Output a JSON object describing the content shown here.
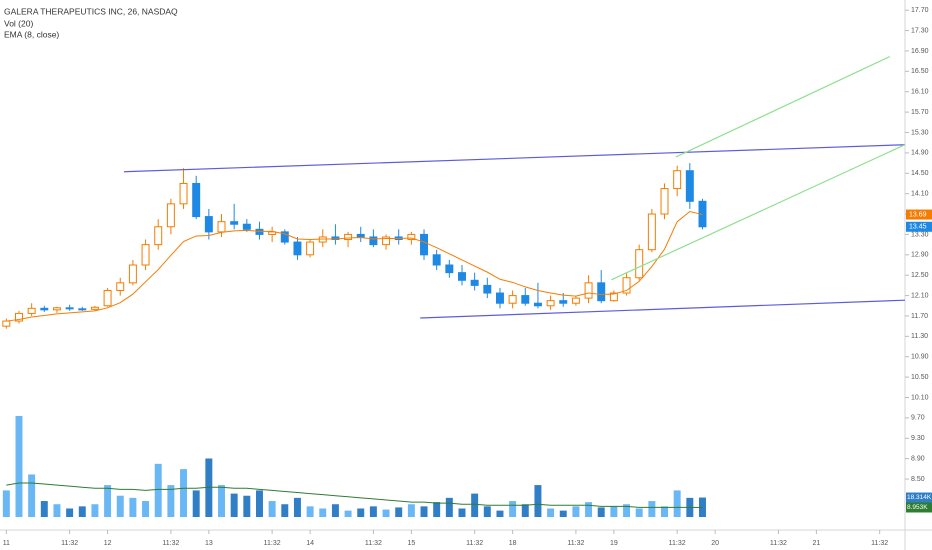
{
  "chart_data": {
    "type": "candlestick",
    "title": "GALERA THERAPEUTICS INC, 26, NASDAQ",
    "up_color": "#f57c00",
    "down_color": "#1e88e5",
    "open": [
      11.5,
      11.6,
      11.75,
      11.85,
      11.82,
      11.86,
      11.84,
      11.83,
      11.9,
      12.2,
      12.35,
      12.7,
      13.1,
      13.45,
      13.9,
      14.3,
      13.65,
      13.35,
      13.55,
      13.5,
      13.4,
      13.3,
      13.35,
      13.15,
      12.9,
      13.15,
      13.25,
      13.2,
      13.3,
      13.25,
      13.1,
      13.25,
      13.2,
      13.3,
      12.9,
      12.7,
      12.55,
      12.4,
      12.3,
      12.15,
      11.95,
      12.1,
      11.95,
      11.9,
      12.0,
      11.95,
      12.05,
      12.35,
      12.0,
      12.15,
      12.45,
      13.0,
      13.7,
      14.2,
      14.55,
      13.95
    ],
    "high": [
      11.65,
      11.8,
      11.95,
      11.9,
      11.88,
      11.92,
      11.88,
      11.9,
      12.25,
      12.45,
      12.8,
      13.2,
      13.6,
      14.0,
      14.6,
      14.45,
      13.8,
      13.7,
      13.9,
      13.6,
      13.55,
      13.45,
      13.4,
      13.25,
      13.2,
      13.4,
      13.5,
      13.35,
      13.45,
      13.4,
      13.3,
      13.4,
      13.35,
      13.4,
      13.0,
      12.8,
      12.7,
      12.55,
      12.45,
      12.25,
      12.2,
      12.25,
      12.35,
      12.1,
      12.15,
      12.1,
      12.5,
      12.6,
      12.2,
      12.55,
      13.1,
      13.8,
      14.3,
      14.65,
      14.7,
      14.0
    ],
    "low": [
      11.45,
      11.55,
      11.7,
      11.78,
      11.76,
      11.8,
      11.8,
      11.8,
      11.88,
      12.1,
      12.3,
      12.6,
      13.0,
      13.3,
      13.8,
      13.6,
      13.2,
      13.25,
      13.4,
      13.35,
      13.2,
      13.15,
      13.1,
      12.8,
      12.85,
      13.05,
      13.1,
      13.05,
      13.15,
      13.05,
      13.0,
      13.1,
      13.1,
      12.8,
      12.6,
      12.45,
      12.3,
      12.2,
      12.05,
      11.85,
      11.85,
      11.9,
      11.85,
      11.82,
      11.88,
      11.9,
      11.95,
      11.95,
      11.98,
      12.1,
      12.4,
      12.95,
      13.6,
      14.05,
      13.8,
      13.4
    ],
    "close": [
      11.6,
      11.75,
      11.85,
      11.82,
      11.86,
      11.84,
      11.83,
      11.87,
      12.2,
      12.35,
      12.7,
      13.1,
      13.45,
      13.9,
      14.3,
      13.65,
      13.35,
      13.55,
      13.5,
      13.4,
      13.3,
      13.35,
      13.15,
      12.9,
      13.15,
      13.25,
      13.2,
      13.3,
      13.25,
      13.1,
      13.25,
      13.2,
      13.3,
      12.9,
      12.7,
      12.55,
      12.4,
      12.3,
      12.15,
      11.95,
      12.1,
      11.95,
      11.9,
      12.0,
      11.95,
      12.05,
      12.35,
      12.0,
      12.15,
      12.45,
      13.0,
      13.7,
      14.2,
      14.55,
      13.95,
      13.45
    ],
    "ylim": [
      7.5,
      17.9
    ],
    "yticks": [
      {
        "value": 8.5,
        "label": "8.50"
      },
      {
        "value": 8.9,
        "label": "8.90"
      },
      {
        "value": 9.3,
        "label": "9.30"
      },
      {
        "value": 9.7,
        "label": "9.70"
      },
      {
        "value": 10.1,
        "label": "10.10"
      },
      {
        "value": 10.5,
        "label": "10.50"
      },
      {
        "value": 10.9,
        "label": "10.90"
      },
      {
        "value": 11.3,
        "label": "11.30"
      },
      {
        "value": 11.7,
        "label": "11.70"
      },
      {
        "value": 12.1,
        "label": "12.10"
      },
      {
        "value": 12.5,
        "label": "12.50"
      },
      {
        "value": 12.9,
        "label": "12.90"
      },
      {
        "value": 13.3,
        "label": "13.30"
      },
      {
        "value": 13.7,
        "label": "13.70"
      },
      {
        "value": 14.1,
        "label": "14.10"
      },
      {
        "value": 14.5,
        "label": "14.50"
      },
      {
        "value": 14.9,
        "label": "14.90"
      },
      {
        "value": 15.3,
        "label": "15.30"
      },
      {
        "value": 15.7,
        "label": "15.70"
      },
      {
        "value": 16.1,
        "label": "16.10"
      },
      {
        "value": 16.5,
        "label": "16.50"
      },
      {
        "value": 16.9,
        "label": "16.90"
      },
      {
        "value": 17.3,
        "label": "17.30"
      },
      {
        "value": 17.7,
        "label": "17.70"
      }
    ],
    "xlim": [
      -0.5,
      71
    ],
    "xticks": [
      {
        "value": 0,
        "label": "11"
      },
      {
        "value": 5,
        "label": "11:32"
      },
      {
        "value": 8,
        "label": "12"
      },
      {
        "value": 13,
        "label": "11:32"
      },
      {
        "value": 16,
        "label": "13"
      },
      {
        "value": 21,
        "label": "11:32"
      },
      {
        "value": 24,
        "label": "14"
      },
      {
        "value": 29,
        "label": "11:32"
      },
      {
        "value": 32,
        "label": "15"
      },
      {
        "value": 37,
        "label": "11:32"
      },
      {
        "value": 40,
        "label": "18"
      },
      {
        "value": 45,
        "label": "11:32"
      },
      {
        "value": 48,
        "label": "19"
      },
      {
        "value": 53,
        "label": "11:32"
      },
      {
        "value": 56,
        "label": "20"
      },
      {
        "value": 61,
        "label": "11:32"
      },
      {
        "value": 64,
        "label": "21"
      },
      {
        "value": 69,
        "label": "11:32"
      }
    ],
    "price_labels": [
      {
        "value": 13.69,
        "color": "#f57c00"
      },
      {
        "value": 13.45,
        "color": "#1e88e5"
      }
    ],
    "ema": {
      "name": "EMA (8, close)",
      "color": "#f57c00",
      "values": [
        11.6,
        11.63,
        11.68,
        11.71,
        11.74,
        11.76,
        11.78,
        11.8,
        11.86,
        11.96,
        12.13,
        12.37,
        12.61,
        12.89,
        13.16,
        13.27,
        13.28,
        13.34,
        13.37,
        13.38,
        13.36,
        13.36,
        13.31,
        13.21,
        13.2,
        13.21,
        13.21,
        13.23,
        13.24,
        13.21,
        13.22,
        13.22,
        13.23,
        13.15,
        13.04,
        12.92,
        12.8,
        12.68,
        12.56,
        12.42,
        12.36,
        12.27,
        12.2,
        12.15,
        12.11,
        12.09,
        12.15,
        12.12,
        12.13,
        12.2,
        12.38,
        12.67,
        13.01,
        13.55,
        13.75,
        13.69
      ]
    },
    "volume": {
      "name": "Vol (20)",
      "up_color": "#6ab7f5",
      "down_color": "#2f7ec6",
      "y2lim": [
        0,
        110
      ],
      "values": [
        25,
        95,
        40,
        15,
        12,
        8,
        10,
        12,
        30,
        20,
        18,
        15,
        50,
        30,
        45,
        25,
        55,
        30,
        22,
        20,
        25,
        15,
        12,
        18,
        10,
        8,
        12,
        6,
        8,
        10,
        7,
        9,
        12,
        10,
        14,
        18,
        8,
        22,
        10,
        6,
        15,
        12,
        30,
        8,
        6,
        10,
        14,
        9,
        10,
        12,
        8,
        15,
        10,
        25,
        18,
        18.314
      ],
      "last_label": "18.314K",
      "ma": {
        "color": "#2e7d32",
        "last_label": "8.953K",
        "values": [
          30,
          32,
          32,
          31,
          30,
          29,
          28,
          27,
          27,
          26,
          26,
          25,
          26,
          26,
          27,
          27,
          28,
          28,
          27,
          27,
          26,
          25,
          24,
          23,
          22,
          21,
          20,
          19,
          18,
          17,
          16,
          15,
          14,
          14,
          13,
          13,
          12,
          12,
          11,
          11,
          11,
          11,
          12,
          11,
          11,
          11,
          11,
          10,
          10,
          10,
          9,
          9,
          9,
          9,
          9,
          8.953
        ]
      }
    },
    "drawings": [
      {
        "color": "#5c5ce0",
        "points": [
          [
            9.3,
            14.53
          ],
          [
            71,
            15.06
          ]
        ]
      },
      {
        "color": "#5c5ce0",
        "points": [
          [
            32.7,
            11.66
          ],
          [
            71,
            12.01
          ]
        ]
      },
      {
        "color": "#8fe08f",
        "points": [
          [
            52.9,
            14.82
          ],
          [
            69.8,
            16.79
          ]
        ]
      },
      {
        "color": "#8fe08f",
        "points": [
          [
            47.8,
            12.41
          ],
          [
            71,
            15.06
          ]
        ]
      }
    ]
  }
}
